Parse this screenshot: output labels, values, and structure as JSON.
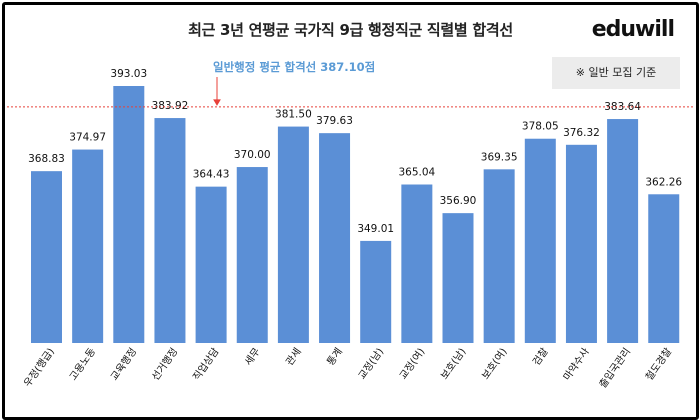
{
  "header": {
    "title": "최근 3년 연평균 국가직 9급 행정직군 직렬별 합격선",
    "logo": "eduwill",
    "note": "※ 일반 모집 기준"
  },
  "chart_data": {
    "type": "bar",
    "title": "최근 3년 연평균 국가직 9급 행정직군 직렬별 합격선",
    "categories": [
      "우정(행급)",
      "고용노동",
      "교육행정",
      "선거행정",
      "직업상담",
      "세무",
      "관세",
      "통계",
      "교정(남)",
      "교정(여)",
      "보호(남)",
      "보호(여)",
      "검찰",
      "마약수사",
      "출입국관리",
      "철도경찰"
    ],
    "values": [
      368.83,
      374.97,
      393.03,
      383.92,
      364.43,
      370.0,
      381.5,
      379.63,
      349.01,
      365.04,
      356.9,
      369.35,
      378.05,
      376.32,
      383.64,
      362.26
    ],
    "value_labels": [
      "368.83",
      "374.97",
      "393.03",
      "383.92",
      "364.43",
      "370.00",
      "381.50",
      "379.63",
      "349.01",
      "365.04",
      "356.90",
      "369.35",
      "378.05",
      "376.32",
      "383.64",
      "362.26"
    ],
    "reference_line": {
      "label": "일반행정 평균 합격선 387.10점",
      "value": 387.1
    },
    "ylim": [
      320,
      393.03
    ],
    "bar_color": "#5b8fd6",
    "reference_color": "#e8413a",
    "label_color": "#5b9bd5"
  }
}
